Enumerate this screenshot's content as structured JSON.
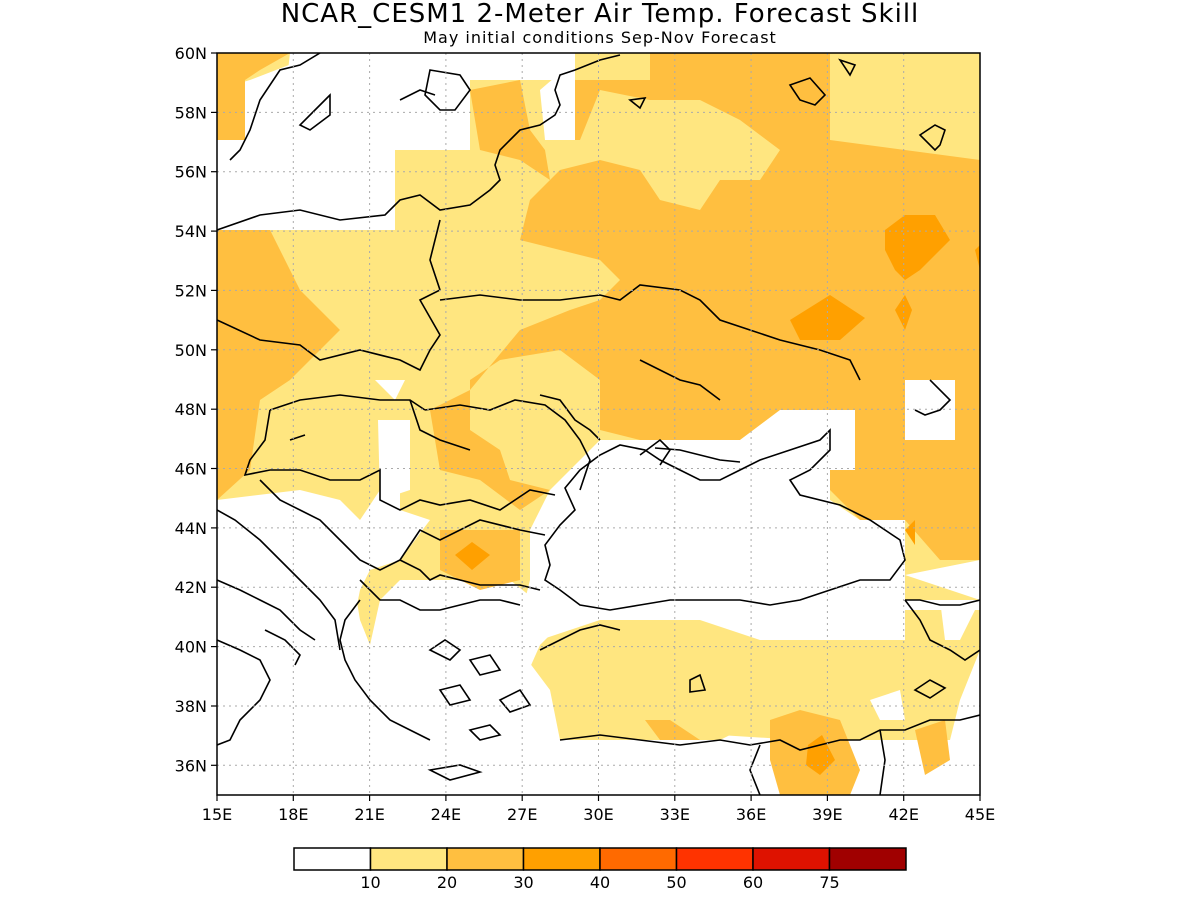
{
  "header": {
    "title": "NCAR_CESM1 2-Meter Air Temp. Forecast Skill",
    "subtitle": "May initial conditions  Sep-Nov Forecast"
  },
  "axes": {
    "lat_ticks": [
      "60N",
      "58N",
      "56N",
      "54N",
      "52N",
      "50N",
      "48N",
      "46N",
      "44N",
      "42N",
      "40N",
      "38N",
      "36N"
    ],
    "lon_ticks": [
      "15E",
      "18E",
      "21E",
      "24E",
      "27E",
      "30E",
      "33E",
      "36E",
      "39E",
      "42E",
      "45E"
    ]
  },
  "legend": {
    "bins": [
      {
        "color": "#ffffff",
        "label": ""
      },
      {
        "color": "#ffe680",
        "label": "10"
      },
      {
        "color": "#ffbf40",
        "label": "20"
      },
      {
        "color": "#ffa000",
        "label": "30"
      },
      {
        "color": "#ff6a00",
        "label": "40"
      },
      {
        "color": "#ff3300",
        "label": "50"
      },
      {
        "color": "#de1200",
        "label": "60"
      },
      {
        "color": "#a00000",
        "label": "75"
      }
    ]
  },
  "colors": {
    "skill_10_20": "#ffe680",
    "skill_20_30": "#ffbf40",
    "skill_30_40": "#ffa000",
    "grid": "#aaaaaa",
    "coast": "#000000"
  }
}
